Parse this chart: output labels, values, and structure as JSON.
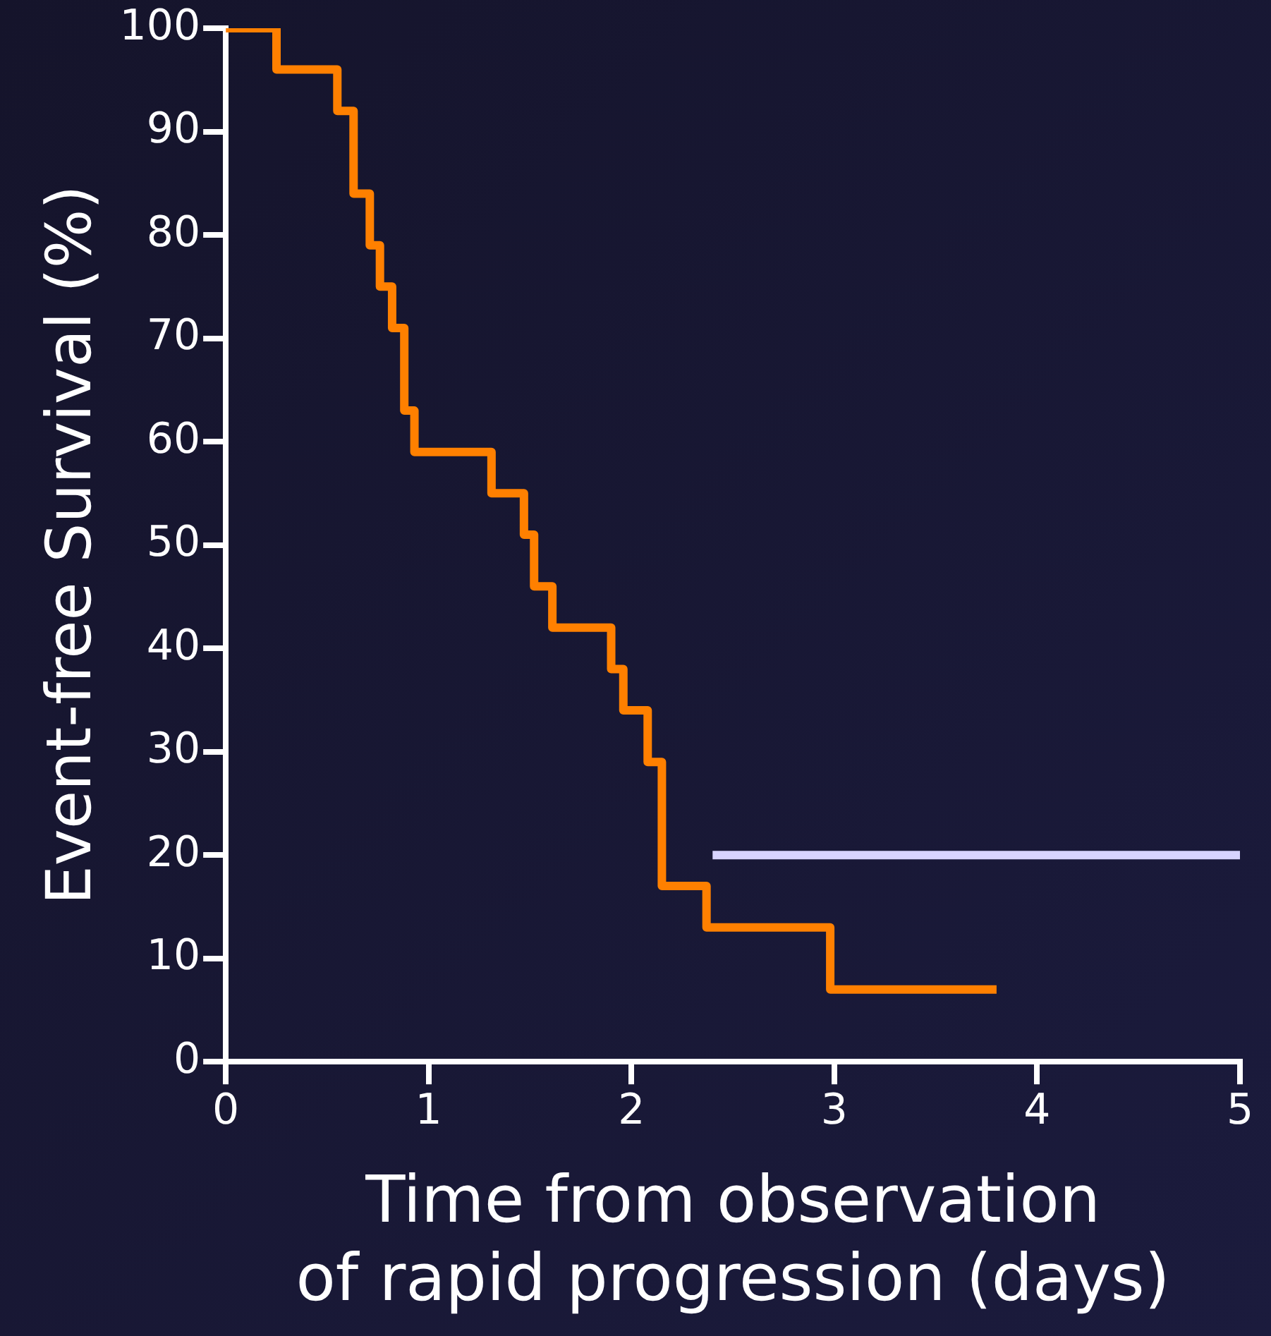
{
  "chart_data": {
    "type": "step",
    "xlabel": "Time from observation\nof rapid progression (days)",
    "ylabel": "Event-free Survival (%)",
    "series": [
      {
        "type": "step",
        "color": "#ff8000",
        "x": [
          0,
          0.25,
          0.55,
          0.63,
          0.71,
          0.76,
          0.82,
          0.88,
          0.93,
          1.31,
          1.47,
          1.52,
          1.61,
          1.9,
          1.96,
          2.08,
          2.15,
          2.37,
          2.98,
          3.8
        ],
        "values": [
          100,
          96,
          92,
          84,
          79,
          75,
          71,
          63,
          59,
          55,
          51,
          46,
          42,
          38,
          34,
          29,
          17,
          13,
          7,
          7
        ]
      },
      {
        "type": "line",
        "color": "#d8d4ff",
        "x": [
          2.4,
          5
        ],
        "values": [
          20,
          20
        ]
      }
    ],
    "xlim": [
      0,
      5
    ],
    "xticks": [
      0,
      1,
      2,
      3,
      4,
      5
    ],
    "ylim": [
      0,
      100
    ],
    "yticks": [
      0,
      10,
      20,
      30,
      40,
      50,
      60,
      70,
      80,
      90,
      100
    ],
    "grid": false,
    "legend": false,
    "marker": "none"
  }
}
